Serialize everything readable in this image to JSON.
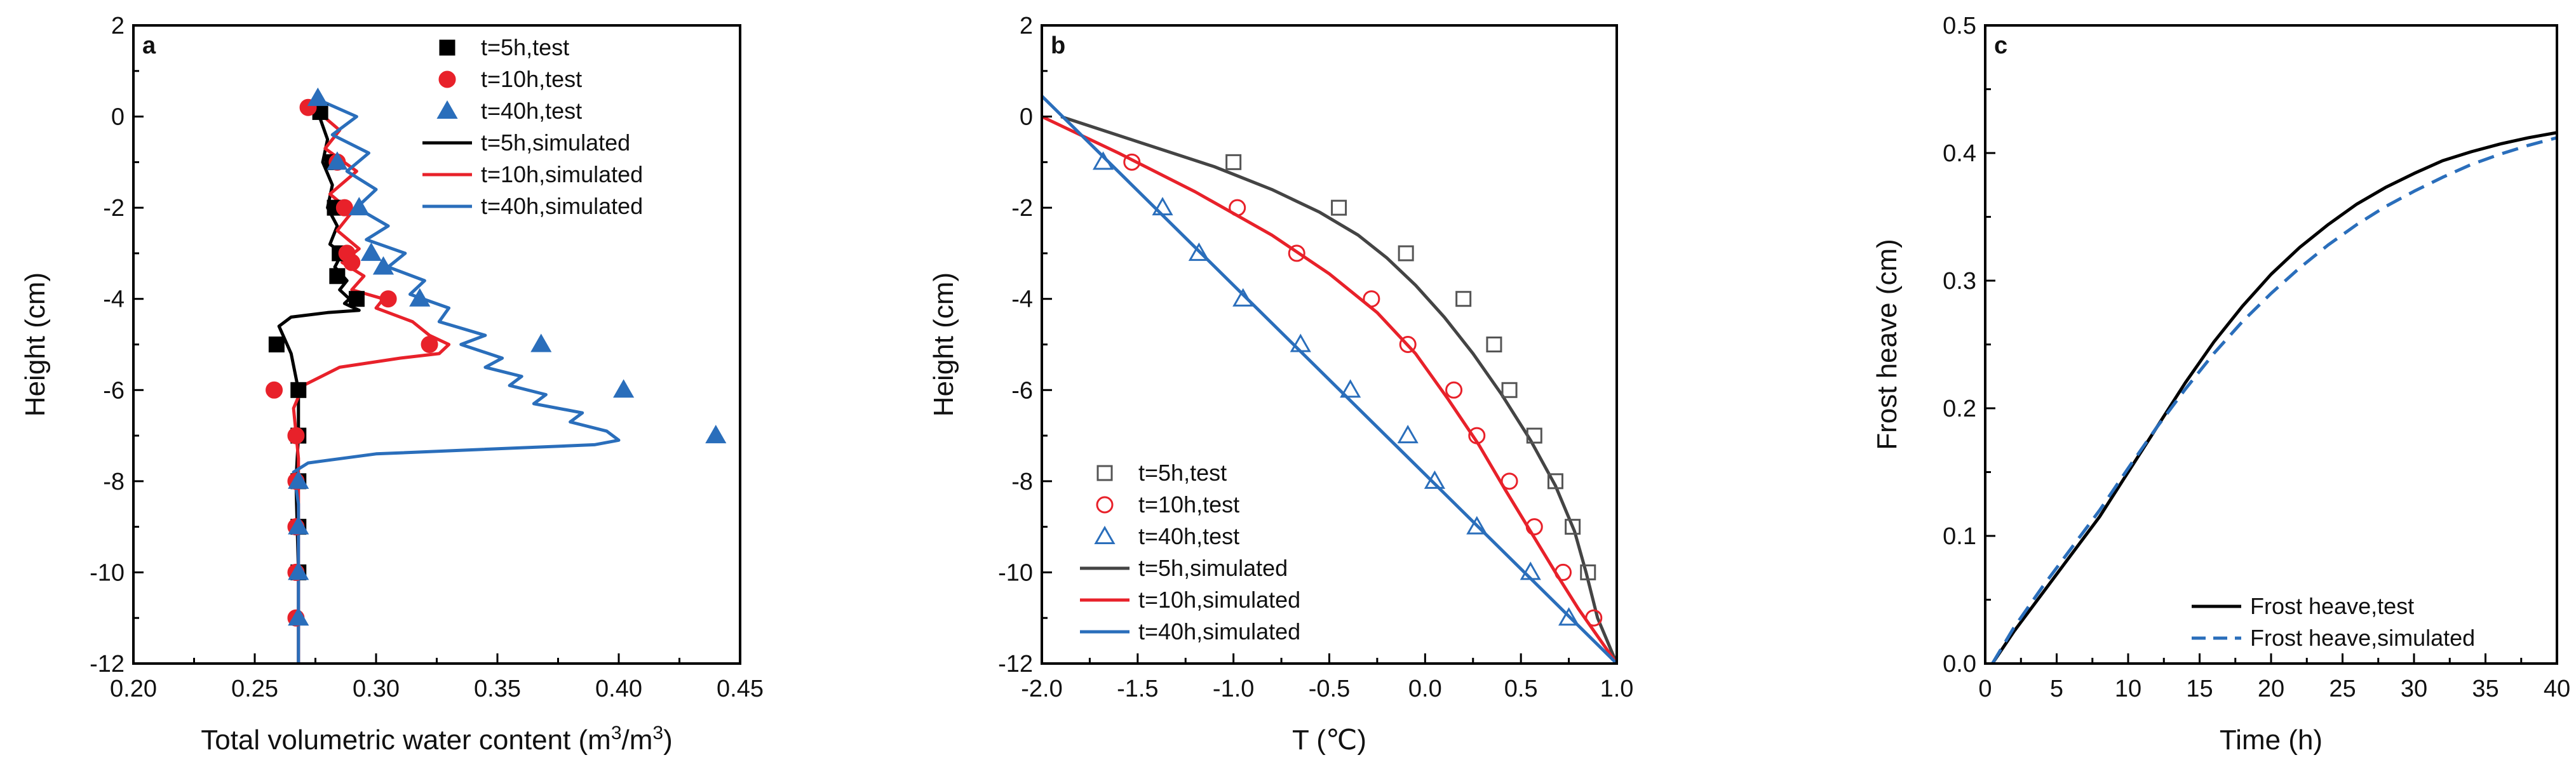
{
  "chart_data": [
    {
      "panel": "a",
      "type": "scatter",
      "xlabel": "Total volumetric water content",
      "xlabel_unit_prefix": "(m",
      "xlabel_unit_sup1": "3",
      "xlabel_unit_mid": "/m",
      "xlabel_unit_sup2": "3",
      "xlabel_unit_suffix": ")",
      "ylabel": "Height (cm)",
      "xlim": [
        0.2,
        0.45
      ],
      "ylim": [
        -12,
        2
      ],
      "xticks": [
        0.2,
        0.25,
        0.3,
        0.35,
        0.4,
        0.45
      ],
      "xtick_labels": [
        "0.20",
        "0.25",
        "0.30",
        "0.35",
        "0.40",
        "0.45"
      ],
      "yticks": [
        2,
        0,
        -2,
        -4,
        -6,
        -8,
        -10,
        -12
      ],
      "ytick_labels": [
        "2",
        "0",
        "-2",
        "-4",
        "-6",
        "-8",
        "-10",
        "-12"
      ],
      "legend": [
        "t=5h,test",
        "t=10h,test",
        "t=40h,test",
        "t=5h,simulated",
        "t=10h,simulated",
        "t=40h,simulated"
      ],
      "series": [
        {
          "name": "t=5h,test",
          "kind": "points",
          "marker": "square",
          "color": "#000000",
          "x": [
            0.277,
            0.282,
            0.283,
            0.285,
            0.284,
            0.292,
            0.259,
            0.268,
            0.268,
            0.268,
            0.268,
            0.268
          ],
          "y": [
            0.1,
            -1,
            -2,
            -3,
            -3.5,
            -4,
            -5,
            -6,
            -7,
            -8,
            -9,
            -10
          ]
        },
        {
          "name": "t=10h,test",
          "kind": "points",
          "marker": "circle",
          "color": "#e8212a",
          "x": [
            0.272,
            0.284,
            0.287,
            0.288,
            0.29,
            0.305,
            0.322,
            0.258,
            0.267,
            0.267,
            0.267,
            0.267,
            0.267
          ],
          "y": [
            0.2,
            -1,
            -2,
            -3,
            -3.2,
            -4,
            -5,
            -6,
            -7,
            -8,
            -9,
            -10,
            -11
          ]
        },
        {
          "name": "t=40h,test",
          "kind": "points",
          "marker": "triangle",
          "color": "#2a6ebb",
          "x": [
            0.276,
            0.284,
            0.293,
            0.298,
            0.303,
            0.318,
            0.368,
            0.402,
            0.44,
            0.268,
            0.268,
            0.268,
            0.268
          ],
          "y": [
            0.4,
            -1,
            -2,
            -3,
            -3.3,
            -4,
            -5,
            -6,
            -7,
            -8,
            -9,
            -10,
            -11
          ]
        },
        {
          "name": "t=5h,simulated",
          "kind": "line",
          "color": "#000000",
          "x": [
            0.276,
            0.28,
            0.278,
            0.282,
            0.28,
            0.284,
            0.281,
            0.286,
            0.283,
            0.288,
            0.285,
            0.289,
            0.287,
            0.291,
            0.293,
            0.28,
            0.265,
            0.26,
            0.265,
            0.268,
            0.268,
            0.267,
            0.268,
            0.268
          ],
          "y": [
            0.1,
            -0.5,
            -1.0,
            -1.5,
            -2.0,
            -2.4,
            -2.8,
            -3.0,
            -3.3,
            -3.6,
            -3.8,
            -4.0,
            -4.1,
            -4.2,
            -4.25,
            -4.3,
            -4.4,
            -4.6,
            -5.2,
            -6.0,
            -7.0,
            -8.0,
            -10.0,
            -12.0
          ]
        },
        {
          "name": "t=10h,simulated",
          "kind": "line",
          "color": "#e8212a",
          "x": [
            0.274,
            0.285,
            0.279,
            0.292,
            0.281,
            0.29,
            0.284,
            0.293,
            0.286,
            0.295,
            0.29,
            0.303,
            0.3,
            0.315,
            0.322,
            0.33,
            0.326,
            0.31,
            0.285,
            0.27,
            0.266,
            0.268,
            0.268,
            0.268
          ],
          "y": [
            0.2,
            -0.3,
            -0.7,
            -1.2,
            -1.7,
            -2.1,
            -2.5,
            -2.9,
            -3.2,
            -3.5,
            -3.8,
            -4.0,
            -4.2,
            -4.5,
            -4.8,
            -5.0,
            -5.2,
            -5.3,
            -5.5,
            -5.9,
            -6.4,
            -7.5,
            -9.0,
            -12.0
          ]
        },
        {
          "name": "t=40h,simulated",
          "kind": "line",
          "color": "#2a6ebb",
          "x": [
            0.275,
            0.292,
            0.282,
            0.297,
            0.288,
            0.3,
            0.292,
            0.305,
            0.296,
            0.312,
            0.305,
            0.32,
            0.314,
            0.33,
            0.326,
            0.345,
            0.335,
            0.352,
            0.345,
            0.36,
            0.355,
            0.37,
            0.365,
            0.385,
            0.38,
            0.395,
            0.4,
            0.39,
            0.3,
            0.272,
            0.266,
            0.268,
            0.268,
            0.268
          ],
          "y": [
            0.4,
            0.0,
            -0.4,
            -0.8,
            -1.2,
            -1.6,
            -2.0,
            -2.4,
            -2.7,
            -3.0,
            -3.3,
            -3.6,
            -3.9,
            -4.2,
            -4.5,
            -4.8,
            -5.0,
            -5.3,
            -5.5,
            -5.7,
            -5.9,
            -6.1,
            -6.3,
            -6.5,
            -6.7,
            -6.9,
            -7.1,
            -7.2,
            -7.4,
            -7.6,
            -7.8,
            -8.5,
            -10.0,
            -12.0
          ]
        }
      ]
    },
    {
      "panel": "b",
      "type": "line",
      "xlabel": "T (℃)",
      "ylabel": "Height (cm)",
      "xlim": [
        -2.0,
        1.0
      ],
      "ylim": [
        -12,
        2
      ],
      "xticks": [
        -2.0,
        -1.5,
        -1.0,
        -0.5,
        0.0,
        0.5,
        1.0
      ],
      "xtick_labels": [
        "-2.0",
        "-1.5",
        "-1.0",
        "-0.5",
        "0.0",
        "0.5",
        "1.0"
      ],
      "yticks": [
        2,
        0,
        -2,
        -4,
        -6,
        -8,
        -10,
        -12
      ],
      "ytick_labels": [
        "2",
        "0",
        "-2",
        "-4",
        "-6",
        "-8",
        "-10",
        "-12"
      ],
      "legend": [
        "t=5h,test",
        "t=10h,test",
        "t=40h,test",
        "t=5h,simulated",
        "t=10h,simulated",
        "t=40h,simulated"
      ],
      "series": [
        {
          "name": "t=5h,test",
          "kind": "points",
          "marker": "open-square",
          "color": "#555555",
          "x": [
            -1.0,
            -0.45,
            -0.1,
            0.2,
            0.36,
            0.44,
            0.57,
            0.68,
            0.77,
            0.85
          ],
          "y": [
            -1,
            -2,
            -3,
            -4,
            -5,
            -6,
            -7,
            -8,
            -9,
            -10
          ]
        },
        {
          "name": "t=10h,test",
          "kind": "points",
          "marker": "open-circle",
          "color": "#e8212a",
          "x": [
            -1.53,
            -0.98,
            -0.67,
            -0.28,
            -0.09,
            0.15,
            0.27,
            0.44,
            0.57,
            0.72,
            0.88
          ],
          "y": [
            -1,
            -2,
            -3,
            -4,
            -5,
            -6,
            -7,
            -8,
            -9,
            -10,
            -11
          ]
        },
        {
          "name": "t=40h,test",
          "kind": "points",
          "marker": "open-triangle",
          "color": "#2a6ebb",
          "x": [
            -1.68,
            -1.37,
            -1.18,
            -0.95,
            -0.65,
            -0.39,
            -0.09,
            0.05,
            0.27,
            0.55,
            0.75
          ],
          "y": [
            -1,
            -2,
            -3,
            -4,
            -5,
            -6,
            -7,
            -8,
            -9,
            -10,
            -11
          ]
        },
        {
          "name": "t=5h,simulated",
          "kind": "line",
          "color": "#444444",
          "x": [
            -1.9,
            -1.5,
            -1.1,
            -0.8,
            -0.55,
            -0.35,
            -0.2,
            -0.05,
            0.1,
            0.25,
            0.4,
            0.55,
            0.68,
            0.78,
            0.84,
            0.9,
            1.0
          ],
          "y": [
            0.0,
            -0.55,
            -1.1,
            -1.6,
            -2.1,
            -2.6,
            -3.1,
            -3.7,
            -4.4,
            -5.2,
            -6.1,
            -7.1,
            -8.1,
            -9.1,
            -10.0,
            -11.0,
            -12.0
          ]
        },
        {
          "name": "t=10h,simulated",
          "kind": "line",
          "color": "#e8212a",
          "x": [
            -2.0,
            -1.6,
            -1.2,
            -0.8,
            -0.5,
            -0.25,
            -0.05,
            0.12,
            0.28,
            0.42,
            0.55,
            0.68,
            0.8,
            0.9,
            1.0
          ],
          "y": [
            0.0,
            -0.8,
            -1.65,
            -2.6,
            -3.45,
            -4.3,
            -5.2,
            -6.2,
            -7.2,
            -8.2,
            -9.1,
            -10.0,
            -10.8,
            -11.4,
            -12.0
          ]
        },
        {
          "name": "t=40h,simulated",
          "kind": "line",
          "color": "#2a6ebb",
          "x": [
            -2.0,
            1.0
          ],
          "y": [
            0.45,
            -12.0
          ]
        }
      ]
    },
    {
      "panel": "c",
      "type": "line",
      "xlabel": "Time (h)",
      "ylabel": "Frost heave (cm)",
      "xlim": [
        0,
        40
      ],
      "ylim": [
        0.0,
        0.5
      ],
      "xticks": [
        0,
        5,
        10,
        15,
        20,
        25,
        30,
        35,
        40
      ],
      "xtick_labels": [
        "0",
        "5",
        "10",
        "15",
        "20",
        "25",
        "30",
        "35",
        "40"
      ],
      "yticks": [
        0.0,
        0.1,
        0.2,
        0.3,
        0.4,
        0.5
      ],
      "ytick_labels": [
        "0.0",
        "0.1",
        "0.2",
        "0.3",
        "0.4",
        "0.5"
      ],
      "legend": [
        "Frost heave,test",
        "Frost heave,simulated"
      ],
      "series": [
        {
          "name": "Frost heave,test",
          "kind": "line",
          "dash": "solid",
          "color": "#000000",
          "x": [
            0.5,
            2,
            4,
            6,
            8,
            10,
            12,
            14,
            16,
            18,
            20,
            22,
            24,
            26,
            28,
            30,
            32,
            34,
            36,
            38,
            40
          ],
          "y": [
            0.0,
            0.025,
            0.055,
            0.085,
            0.115,
            0.15,
            0.185,
            0.22,
            0.252,
            0.28,
            0.305,
            0.326,
            0.344,
            0.36,
            0.373,
            0.384,
            0.394,
            0.401,
            0.407,
            0.412,
            0.416
          ]
        },
        {
          "name": "Frost heave,simulated",
          "kind": "line",
          "dash": "dashed",
          "color": "#2a6ebb",
          "x": [
            0.5,
            2,
            4,
            6,
            8,
            10,
            12,
            14,
            16,
            18,
            20,
            22,
            24,
            26,
            28,
            30,
            32,
            34,
            36,
            38,
            40
          ],
          "y": [
            0.0,
            0.028,
            0.06,
            0.09,
            0.12,
            0.153,
            0.185,
            0.215,
            0.243,
            0.268,
            0.29,
            0.31,
            0.328,
            0.344,
            0.358,
            0.37,
            0.381,
            0.391,
            0.399,
            0.406,
            0.412
          ]
        }
      ]
    }
  ]
}
